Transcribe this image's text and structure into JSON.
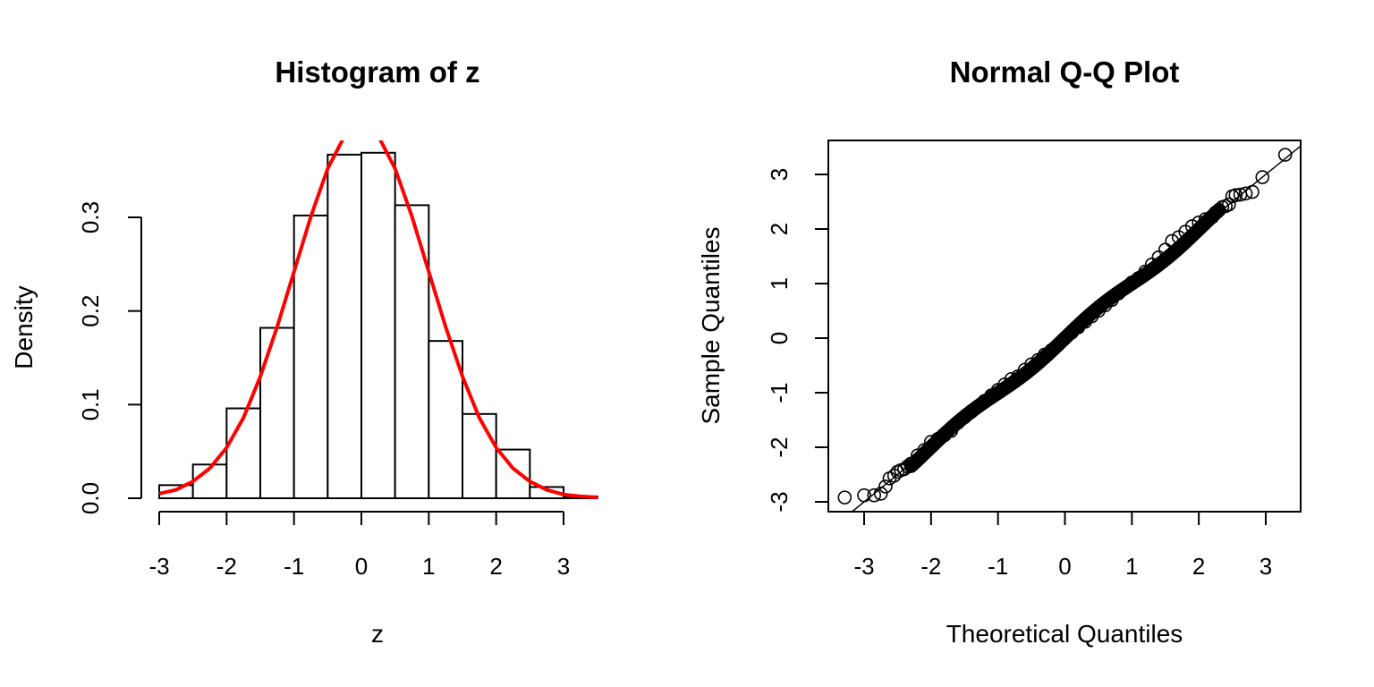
{
  "chart_data": [
    {
      "type": "bar",
      "subtype": "histogram",
      "title": "Histogram of z",
      "xlabel": "z",
      "ylabel": "Density",
      "bin_edges": [
        -3.0,
        -2.5,
        -2.0,
        -1.5,
        -1.0,
        -0.5,
        0.0,
        0.5,
        1.0,
        1.5,
        2.0,
        2.5,
        3.0,
        3.5
      ],
      "values": [
        0.014,
        0.036,
        0.096,
        0.182,
        0.302,
        0.367,
        0.369,
        0.313,
        0.168,
        0.09,
        0.052,
        0.012,
        0.002
      ],
      "xlim": [
        -3,
        3.5
      ],
      "ylim": [
        0,
        0.38
      ],
      "x_ticks": [
        -3,
        -2,
        -1,
        0,
        1,
        2,
        3
      ],
      "x_tick_labels": [
        "-3",
        "-2",
        "-1",
        "0",
        "1",
        "2",
        "3"
      ],
      "y_ticks": [
        0.0,
        0.1,
        0.2,
        0.3
      ],
      "y_tick_labels": [
        "0.0",
        "0.1",
        "0.2",
        "0.3"
      ],
      "overlay_curve": {
        "type": "line",
        "x": [
          -3.0,
          -2.75,
          -2.5,
          -2.25,
          -2.0,
          -1.75,
          -1.5,
          -1.25,
          -1.0,
          -0.75,
          -0.5,
          -0.25,
          0.0,
          0.25,
          0.5,
          0.75,
          1.0,
          1.25,
          1.5,
          1.75,
          2.0,
          2.25,
          2.5,
          2.75,
          3.0,
          3.25,
          3.5
        ],
        "y": [
          0.005,
          0.009,
          0.018,
          0.032,
          0.054,
          0.086,
          0.13,
          0.183,
          0.242,
          0.301,
          0.352,
          0.387,
          0.399,
          0.387,
          0.352,
          0.301,
          0.242,
          0.183,
          0.13,
          0.086,
          0.054,
          0.032,
          0.018,
          0.009,
          0.004,
          0.002,
          0.001
        ],
        "color": "#ff0000"
      },
      "grid": false,
      "box": false
    },
    {
      "type": "scatter",
      "title": "Normal Q-Q Plot",
      "xlabel": "Theoretical Quantiles",
      "ylabel": "Sample Quantiles",
      "xlim": [
        -3.3,
        3.5
      ],
      "ylim": [
        -3.1,
        3.6
      ],
      "x_ticks": [
        -3,
        -2,
        -1,
        0,
        1,
        2,
        3
      ],
      "x_tick_labels": [
        "-3",
        "-2",
        "-1",
        "0",
        "1",
        "2",
        "3"
      ],
      "y_ticks": [
        -3,
        -2,
        -1,
        0,
        1,
        2,
        3
      ],
      "y_tick_labels": [
        "-3",
        "-2",
        "-1",
        "0",
        "1",
        "2",
        "3"
      ],
      "points": {
        "x": [
          -3.29,
          -3.0,
          -2.85,
          -2.75,
          -2.68,
          -2.62,
          -2.55,
          -2.5,
          -2.45,
          -2.4,
          -2.35,
          -2.3,
          -2.2,
          -2.1,
          -2.0,
          -1.9,
          -1.8,
          -1.7,
          -1.6,
          -1.5,
          -1.4,
          -1.3,
          -1.2,
          -1.1,
          -1.0,
          -0.9,
          -0.8,
          -0.7,
          -0.6,
          -0.5,
          -0.4,
          -0.3,
          -0.2,
          -0.1,
          0.0,
          0.1,
          0.2,
          0.3,
          0.4,
          0.5,
          0.6,
          0.7,
          0.8,
          0.9,
          1.0,
          1.1,
          1.2,
          1.3,
          1.4,
          1.5,
          1.6,
          1.7,
          1.8,
          1.9,
          2.0,
          2.1,
          2.2,
          2.25,
          2.3,
          2.35,
          2.4,
          2.45,
          2.5,
          2.55,
          2.62,
          2.7,
          2.8,
          2.95,
          3.29
        ],
        "y": [
          -2.92,
          -2.88,
          -2.88,
          -2.85,
          -2.72,
          -2.57,
          -2.52,
          -2.45,
          -2.42,
          -2.4,
          -2.35,
          -2.3,
          -2.15,
          -2.05,
          -1.9,
          -1.85,
          -1.78,
          -1.7,
          -1.55,
          -1.45,
          -1.35,
          -1.25,
          -1.15,
          -1.05,
          -0.95,
          -0.85,
          -0.75,
          -0.7,
          -0.58,
          -0.48,
          -0.4,
          -0.3,
          -0.22,
          -0.12,
          0.0,
          0.1,
          0.2,
          0.3,
          0.4,
          0.5,
          0.6,
          0.7,
          0.82,
          0.92,
          1.02,
          1.1,
          1.22,
          1.35,
          1.48,
          1.62,
          1.78,
          1.85,
          1.95,
          2.05,
          2.12,
          2.18,
          2.22,
          2.3,
          2.35,
          2.4,
          2.42,
          2.45,
          2.6,
          2.62,
          2.63,
          2.65,
          2.68,
          2.95,
          3.36
        ]
      },
      "reference_line": {
        "intercept": 0.0,
        "slope": 1.0
      },
      "grid": false,
      "box": true
    }
  ]
}
